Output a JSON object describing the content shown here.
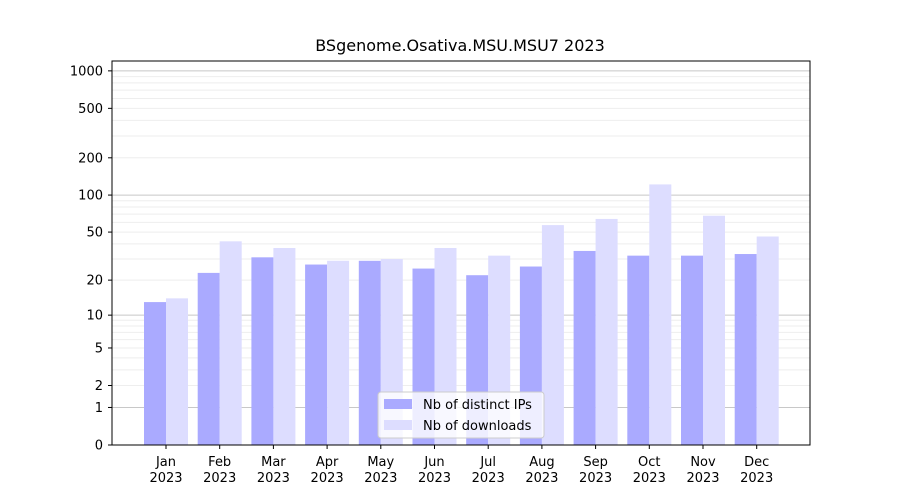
{
  "chart_data": {
    "type": "bar",
    "title": "BSgenome.Osativa.MSU.MSU7 2023",
    "xlabel": "",
    "ylabel": "",
    "y_scale": "log(1+y)",
    "ylim": [
      0,
      1200
    ],
    "y_ticks": [
      {
        "value": 0,
        "label": "0"
      },
      {
        "value": 1,
        "label": "1"
      },
      {
        "value": 2,
        "label": "2"
      },
      {
        "value": 5,
        "label": "5"
      },
      {
        "value": 10,
        "label": "10"
      },
      {
        "value": 20,
        "label": "20"
      },
      {
        "value": 50,
        "label": "50"
      },
      {
        "value": 100,
        "label": "100"
      },
      {
        "value": 200,
        "label": "200"
      },
      {
        "value": 500,
        "label": "500"
      },
      {
        "value": 1000,
        "label": "1000"
      }
    ],
    "categories": [
      {
        "month": "Jan",
        "year": "2023"
      },
      {
        "month": "Feb",
        "year": "2023"
      },
      {
        "month": "Mar",
        "year": "2023"
      },
      {
        "month": "Apr",
        "year": "2023"
      },
      {
        "month": "May",
        "year": "2023"
      },
      {
        "month": "Jun",
        "year": "2023"
      },
      {
        "month": "Jul",
        "year": "2023"
      },
      {
        "month": "Aug",
        "year": "2023"
      },
      {
        "month": "Sep",
        "year": "2023"
      },
      {
        "month": "Oct",
        "year": "2023"
      },
      {
        "month": "Nov",
        "year": "2023"
      },
      {
        "month": "Dec",
        "year": "2023"
      }
    ],
    "series": [
      {
        "name": "Nb of distinct IPs",
        "color": "#aaaaff",
        "values": [
          13,
          23,
          31,
          27,
          29,
          25,
          22,
          26,
          35,
          32,
          32,
          33
        ]
      },
      {
        "name": "Nb of downloads",
        "color": "#ddddff",
        "values": [
          14,
          42,
          37,
          29,
          30,
          37,
          32,
          57,
          64,
          122,
          68,
          46
        ]
      }
    ],
    "grid": true,
    "legend_position": "bottom-center"
  }
}
